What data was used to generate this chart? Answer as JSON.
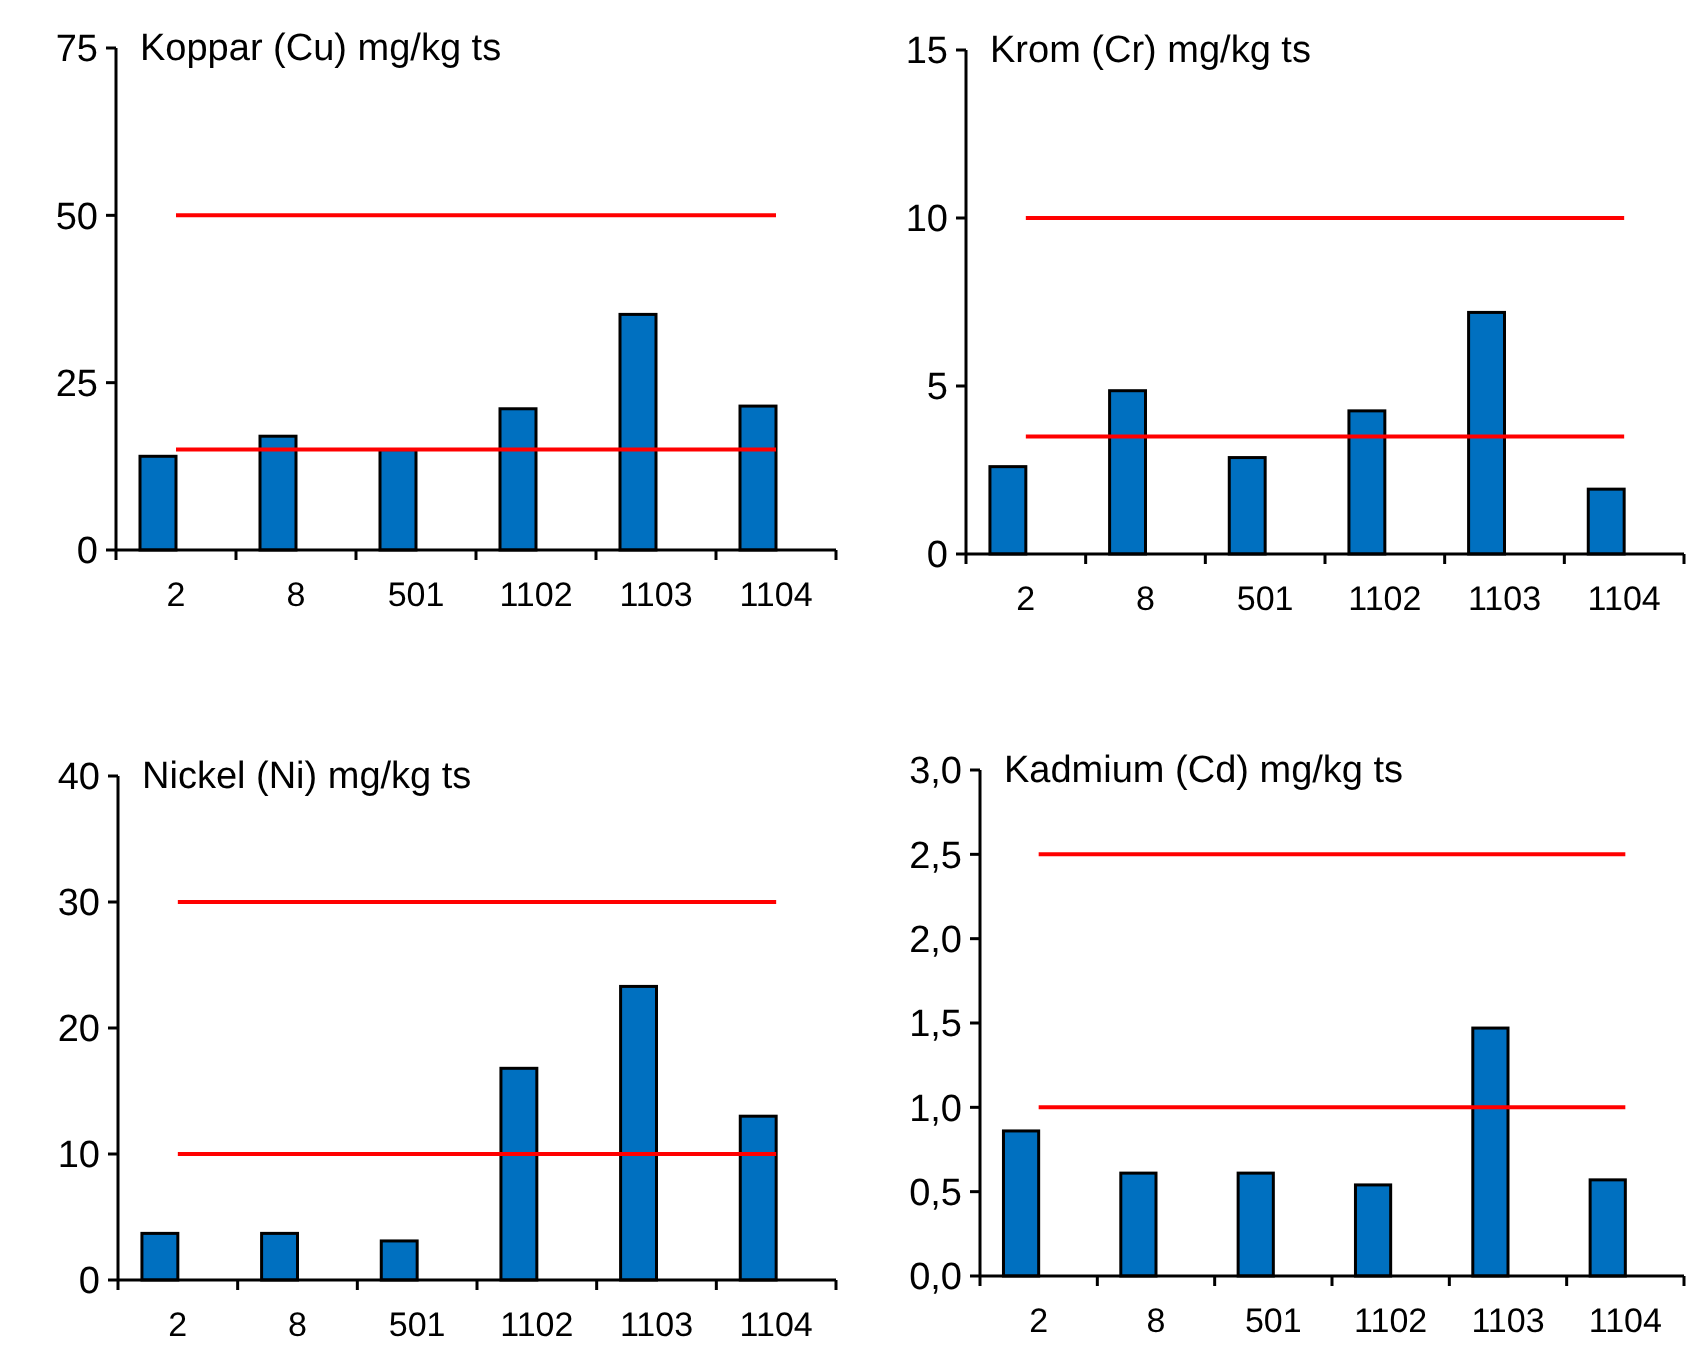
{
  "chart_data": [
    {
      "type": "bar",
      "title": "Koppar (Cu) mg/kg ts",
      "categories": [
        "2",
        "8",
        "501",
        "1102",
        "1103",
        "1104"
      ],
      "values": [
        14.0,
        17.0,
        15.0,
        21.1,
        35.2,
        21.5
      ],
      "color": "#0070c0",
      "ylim": [
        0,
        75
      ],
      "yticks": [
        0,
        25,
        50,
        75
      ],
      "grid": false,
      "ref_lines": [
        {
          "axis": "y",
          "value": 50,
          "color": "#ff0000"
        },
        {
          "axis": "y",
          "value": 15,
          "color": "#ff0000"
        }
      ]
    },
    {
      "type": "bar",
      "title": "Krom (Cr) mg/kg ts",
      "categories": [
        "2",
        "8",
        "501",
        "1102",
        "1103",
        "1104"
      ],
      "values": [
        2.6,
        4.86,
        2.87,
        4.26,
        7.19,
        1.93
      ],
      "color": "#0070c0",
      "ylim": [
        0,
        15
      ],
      "yticks": [
        0,
        5,
        10,
        15
      ],
      "grid": false,
      "ref_lines": [
        {
          "axis": "y",
          "value": 10,
          "color": "#ff0000"
        },
        {
          "axis": "y",
          "value": 3.5,
          "color": "#ff0000"
        }
      ]
    },
    {
      "type": "bar",
      "title": "Nickel (Ni) mg/kg ts",
      "categories": [
        "2",
        "8",
        "501",
        "1102",
        "1103",
        "1104"
      ],
      "values": [
        3.7,
        3.7,
        3.1,
        16.8,
        23.3,
        13.0
      ],
      "color": "#0070c0",
      "ylim": [
        0,
        40
      ],
      "yticks": [
        0,
        10,
        20,
        30,
        40
      ],
      "grid": false,
      "ref_lines": [
        {
          "axis": "y",
          "value": 30,
          "color": "#ff0000"
        },
        {
          "axis": "y",
          "value": 10,
          "color": "#ff0000"
        }
      ]
    },
    {
      "type": "bar",
      "title": "Kadmium (Cd) mg/kg ts",
      "categories": [
        "2",
        "8",
        "501",
        "1102",
        "1103",
        "1104"
      ],
      "values": [
        0.86,
        0.61,
        0.61,
        0.54,
        1.47,
        0.57
      ],
      "color": "#0070c0",
      "ylim": [
        0,
        3
      ],
      "yticks": [
        {
          "value": 0,
          "label": "0,0"
        },
        {
          "value": 0.5,
          "label": "0,5"
        },
        {
          "value": 1,
          "label": "1,0"
        },
        {
          "value": 1.5,
          "label": "1,5"
        },
        {
          "value": 2,
          "label": "2,0"
        },
        {
          "value": 2.5,
          "label": "2,5"
        },
        {
          "value": 3,
          "label": "3,0"
        }
      ],
      "grid": false,
      "ref_lines": [
        {
          "axis": "y",
          "value": 2.5,
          "color": "#ff0000"
        },
        {
          "axis": "y",
          "value": 1,
          "color": "#ff0000"
        }
      ]
    }
  ]
}
